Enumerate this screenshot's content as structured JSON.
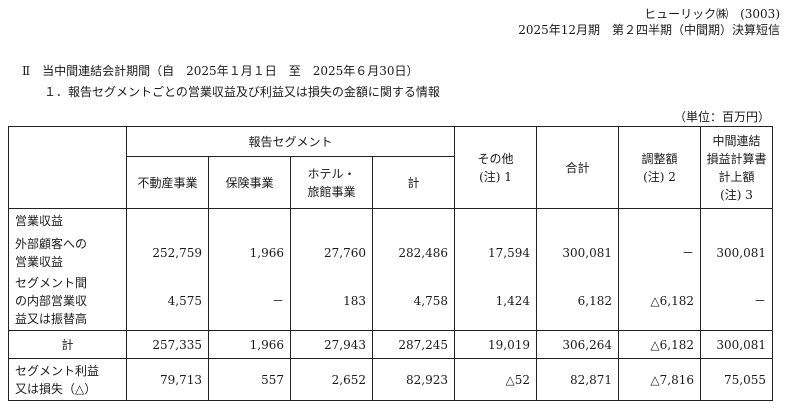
{
  "header": {
    "company": "ヒューリック㈱　(3003)",
    "period": "2025年12月期　第２四半期（中間期）決算短信"
  },
  "section_title": "Ⅱ　当中間連結会計期間（自　2025年１月１日　至　2025年６月30日）",
  "subsection_title": "１．報告セグメントごとの営業収益及び利益又は損失の金額に関する情報",
  "unit": "（単位：百万円）",
  "table": {
    "group_header": "報告セグメント",
    "columns": {
      "realestate": "不動産事業",
      "insurance": "保険事業",
      "hotel_l1": "ホテル・",
      "hotel_l2": "旅館事業",
      "subtotal": "計",
      "other_l1": "その他",
      "other_l2": "(注) 1",
      "total": "合計",
      "adjust_l1": "調整額",
      "adjust_l2": "(注) 2",
      "consol_l1": "中間連結",
      "consol_l2": "損益計算書",
      "consol_l3": "計上額",
      "consol_l4": "(注) 3"
    },
    "rows": {
      "revenue_label": "営業収益",
      "external_l1": "外部顧客への",
      "external_l2": "営業収益",
      "external": [
        "252,759",
        "1,966",
        "27,760",
        "282,486",
        "17,594",
        "300,081",
        "－",
        "300,081"
      ],
      "intersegment_l1": "セグメント間",
      "intersegment_l2": "の内部営業収",
      "intersegment_l3": "益又は振替高",
      "intersegment": [
        "4,575",
        "－",
        "183",
        "4,758",
        "1,424",
        "6,182",
        "△6,182",
        "－"
      ],
      "sum_label": "計",
      "sum": [
        "257,335",
        "1,966",
        "27,943",
        "287,245",
        "19,019",
        "306,264",
        "△6,182",
        "300,081"
      ],
      "profit_l1": "セグメント利益",
      "profit_l2": "又は損失（△）",
      "profit": [
        "79,713",
        "557",
        "2,652",
        "82,923",
        "△52",
        "82,871",
        "△7,816",
        "75,055"
      ]
    }
  }
}
